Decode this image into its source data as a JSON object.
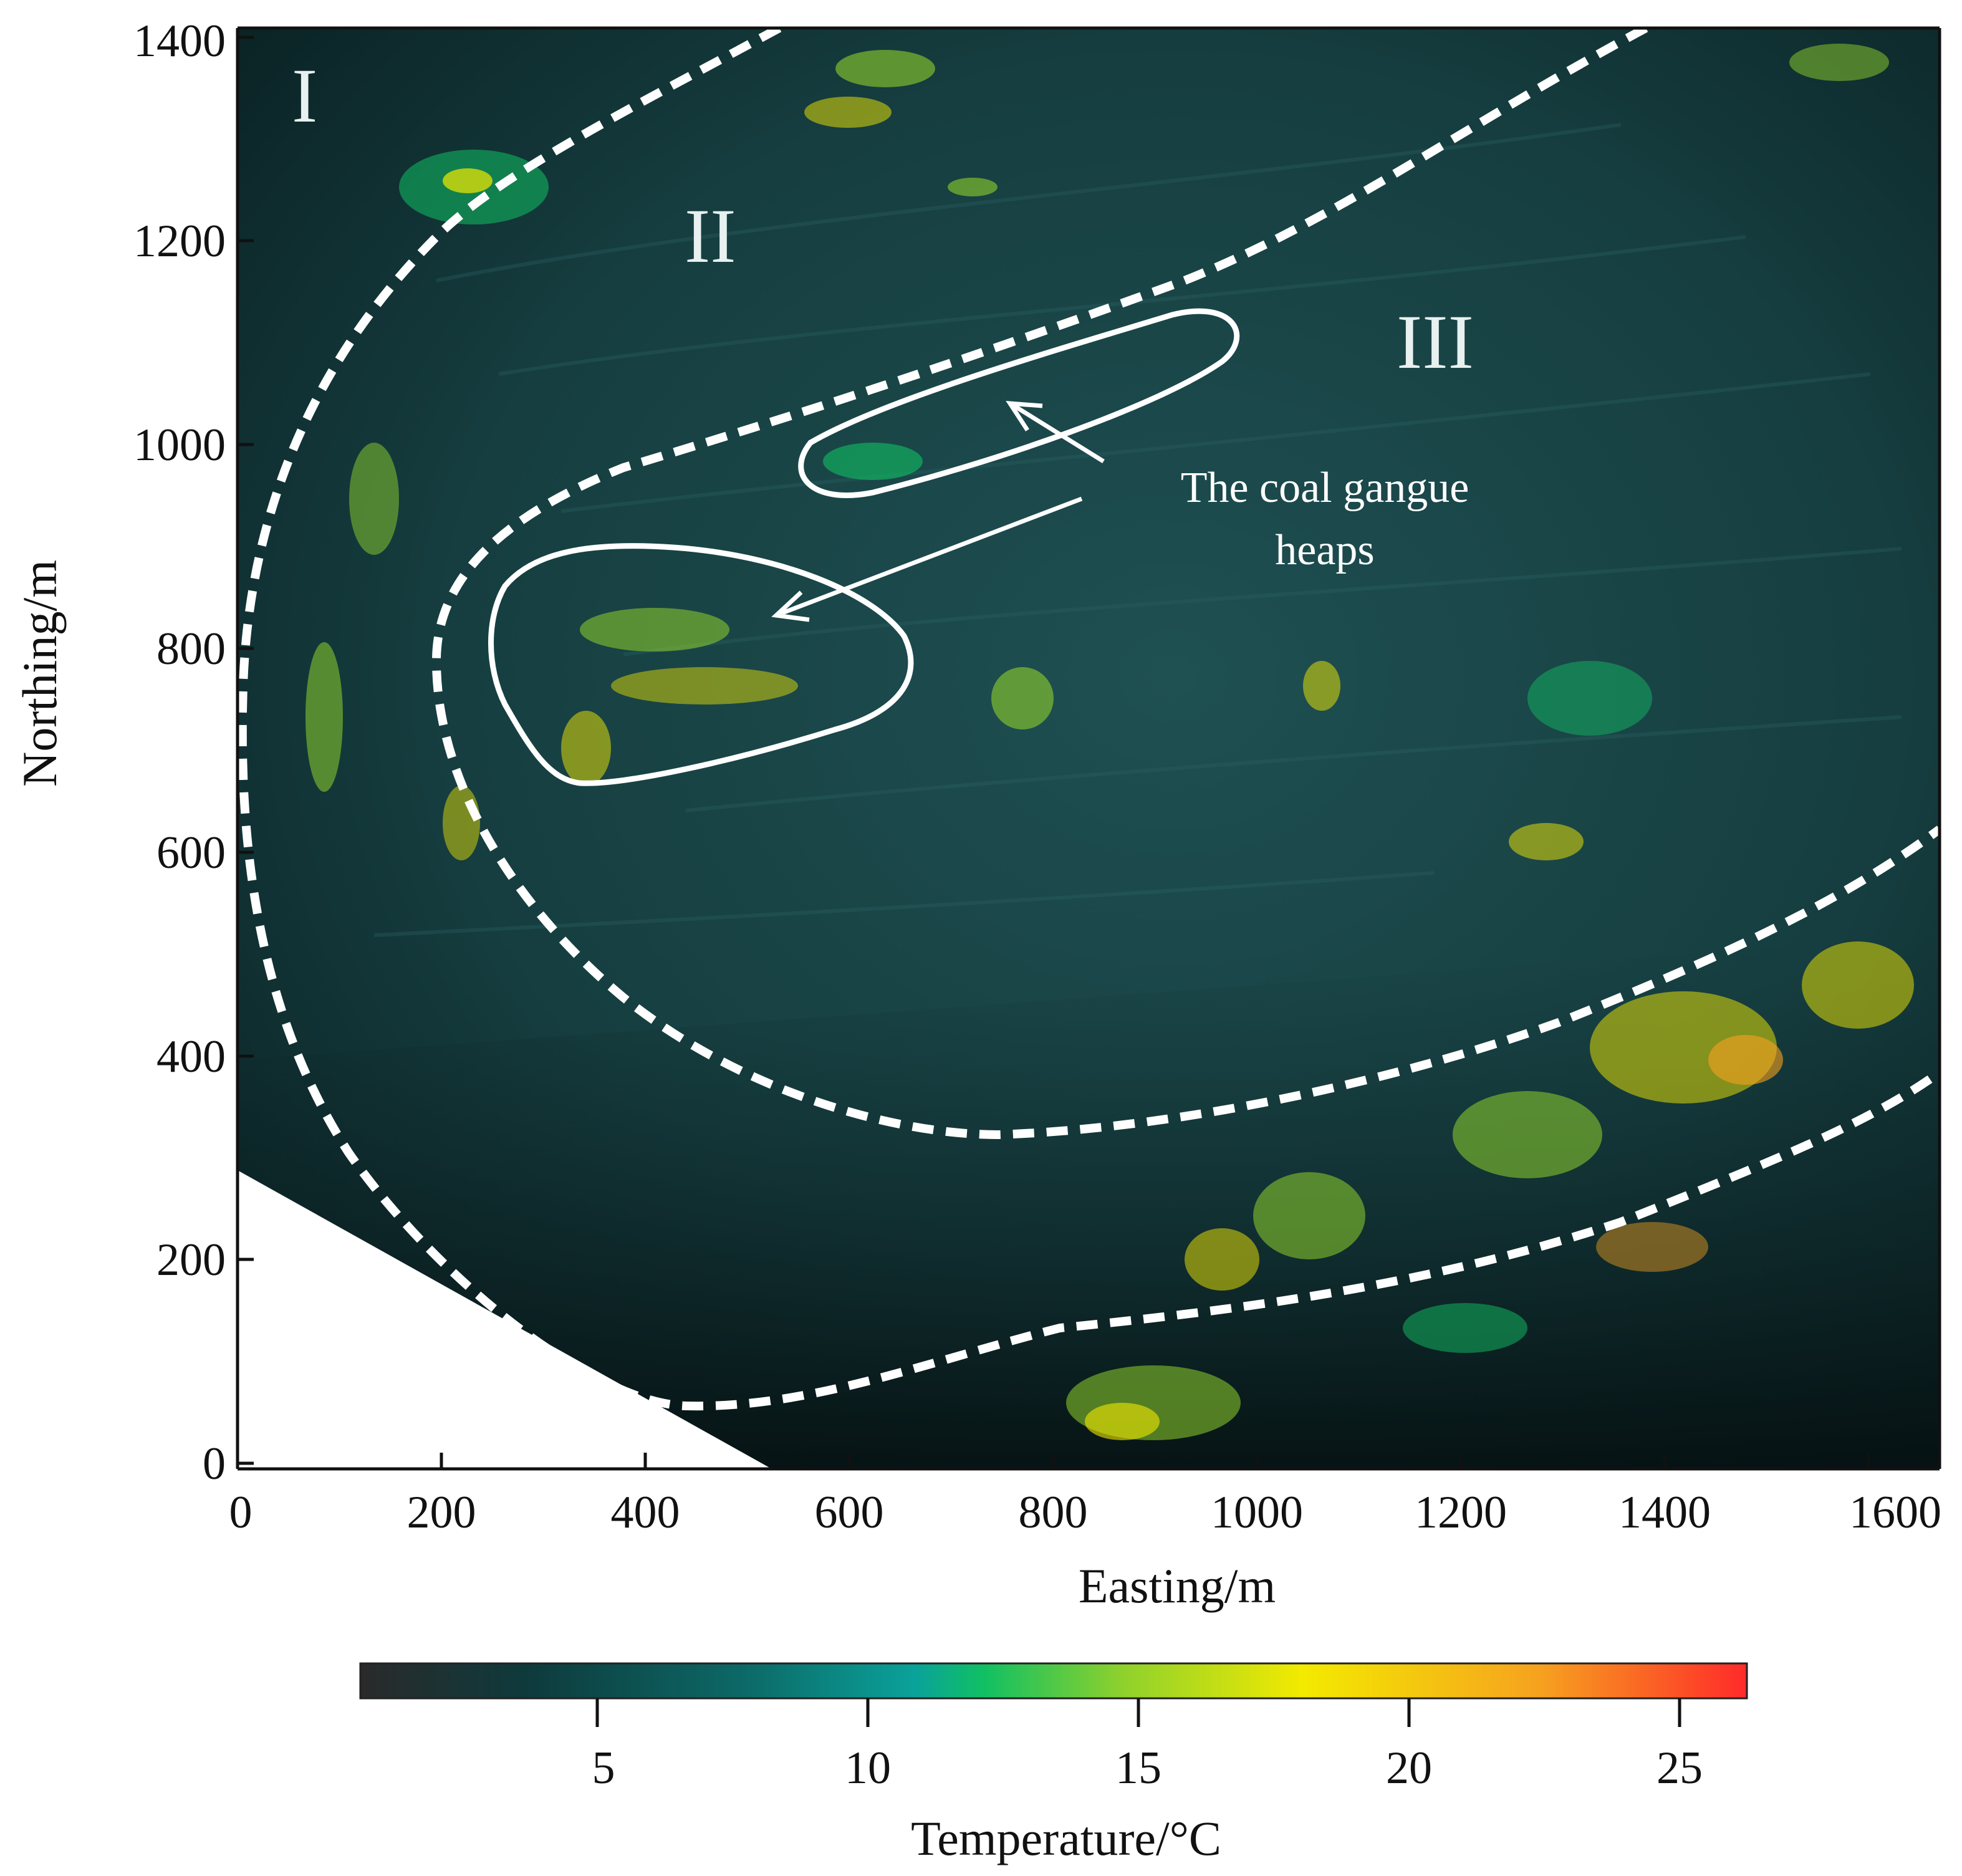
{
  "map": {
    "x_axis": {
      "title": "Easting/m",
      "ticks": [
        "0",
        "200",
        "400",
        "600",
        "800",
        "1000",
        "1200",
        "1400",
        "1600"
      ]
    },
    "y_axis": {
      "title": "Northing/m",
      "ticks": [
        "0",
        "200",
        "400",
        "600",
        "800",
        "1000",
        "1200",
        "1400"
      ]
    },
    "zones": [
      {
        "label": "I"
      },
      {
        "label": "II"
      },
      {
        "label": "III"
      }
    ],
    "annotation": {
      "line1": "The coal gangue",
      "line2": "heaps"
    }
  },
  "colorbar": {
    "title": "Temperature/°C",
    "ticks": [
      "5",
      "10",
      "15",
      "20",
      "25"
    ],
    "colors": [
      "#2a2a2a",
      "#0e3a3c",
      "#0c6a68",
      "#0aa29a",
      "#11c063",
      "#8fd12c",
      "#f3ea00",
      "#f6a21f",
      "#ff2a2a"
    ]
  }
}
